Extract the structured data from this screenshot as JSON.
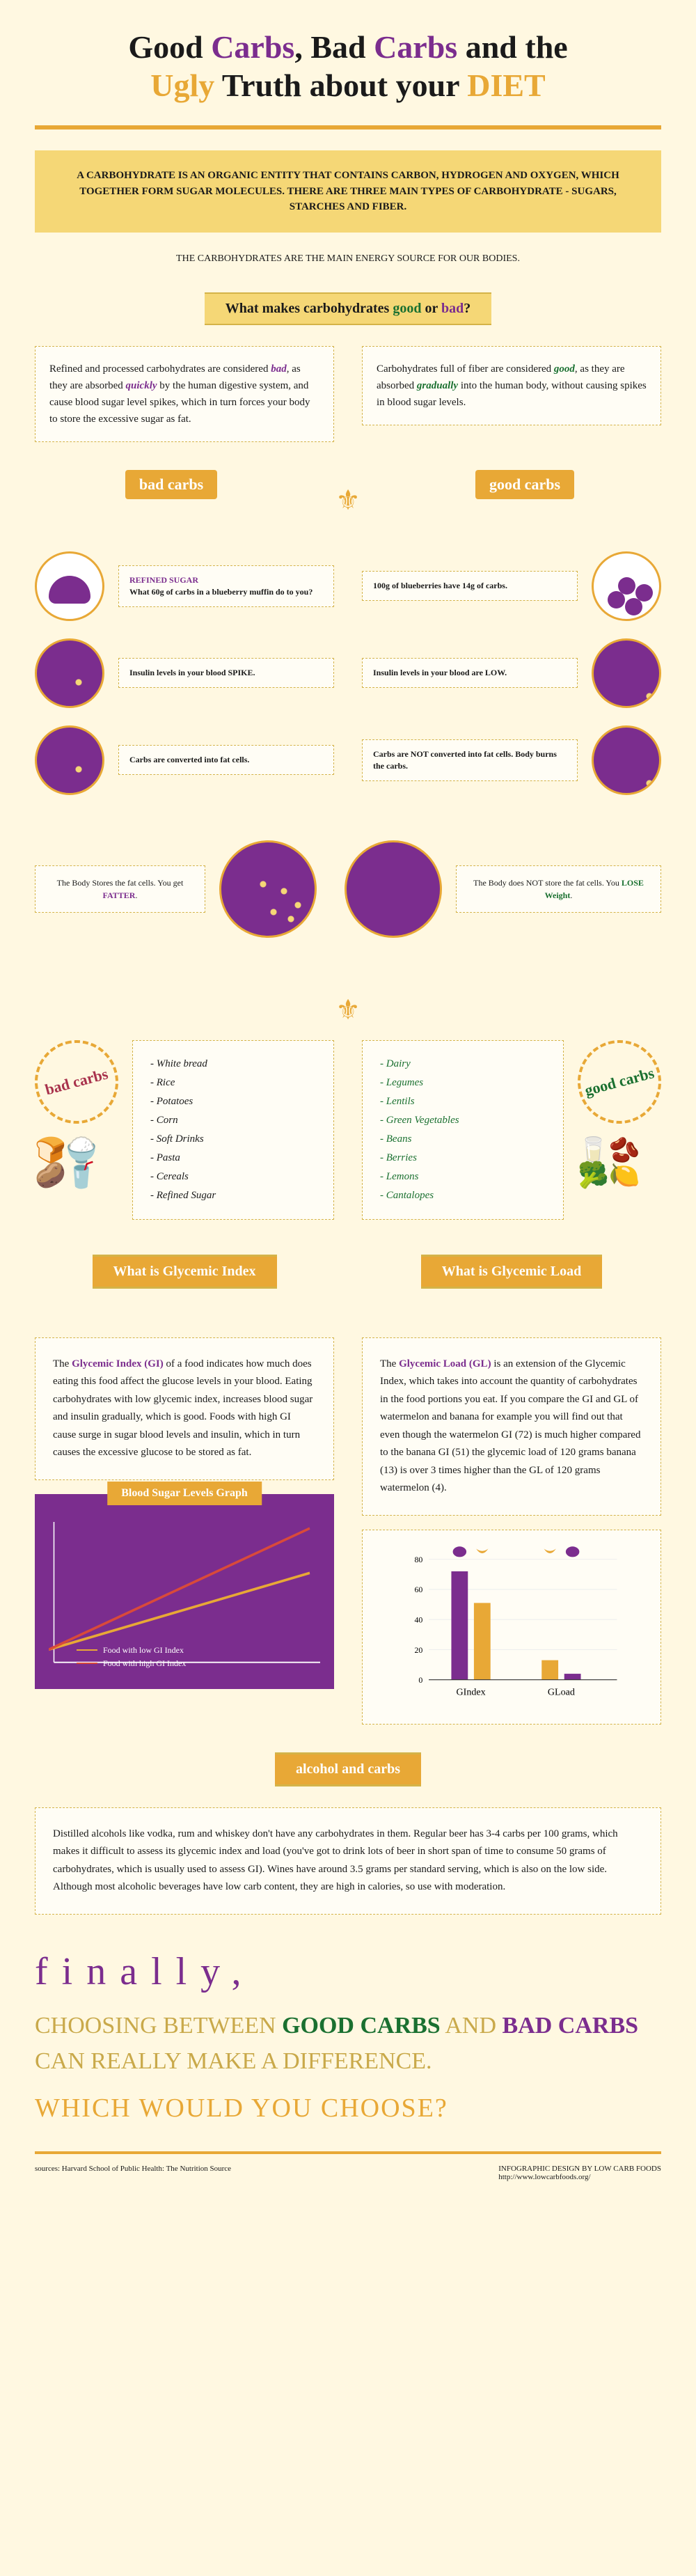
{
  "title": {
    "line": "Good Carbs, Bad Carbs and the Ugly Truth about your DIET"
  },
  "intro_banner": "A CARBOHYDRATE IS AN ORGANIC ENTITY THAT CONTAINS CARBON, HYDROGEN AND OXYGEN, WHICH TOGETHER FORM SUGAR MOLECULES. THERE ARE THREE MAIN TYPES OF CARBOHYDRATE - SUGARS, STARCHES AND FIBER.",
  "intro_sub": "THE CARBOHYDRATES ARE THE MAIN ENERGY SOURCE FOR OUR BODIES.",
  "heading1": {
    "pre": "What makes carbohydrates ",
    "good": "good",
    "or": " or ",
    "bad": "bad",
    "q": "?"
  },
  "bad_explain": {
    "t1": "Refined and processed carbohydrates are considered ",
    "bad": "bad",
    "t2": ", as they are absorbed ",
    "quickly": "quickly",
    "t3": " by the human digestive system, and cause blood sugar level spikes, which in turn forces your body to store the excessive sugar as fat."
  },
  "good_explain": {
    "t1": "Carbohydrates full of fiber are considered ",
    "good": "good",
    "t2": ", as they are absorbed ",
    "gradually": "gradually",
    "t3": " into the human body, without causing spikes in blood sugar levels."
  },
  "bad_label": "bad carbs",
  "good_label": "good carbs",
  "bad_steps": [
    {
      "title": "REFINED SUGAR",
      "sub": "What 60g of carbs in a blueberry muffin do to you?",
      "circle": "muffin"
    },
    {
      "title": "",
      "sub": "Insulin levels in your blood SPIKE.",
      "circle": "more-dots"
    },
    {
      "title": "",
      "sub": "Carbs are converted into fat cells.",
      "circle": "more-dots"
    }
  ],
  "bad_result": {
    "t1": "The Body Stores the fat cells. You get ",
    "em": "FATTER",
    "t2": "."
  },
  "good_steps": [
    {
      "title": "",
      "sub": "100g of blueberries have 14g of carbs.",
      "circle": "berries"
    },
    {
      "title": "",
      "sub": "Insulin levels in your blood are LOW.",
      "circle": "few-dots"
    },
    {
      "title": "",
      "sub": "Carbs are NOT converted into fat cells. Body burns the carbs.",
      "circle": "few-dots"
    }
  ],
  "good_result": {
    "t1": "The Body does NOT store the fat cells. You ",
    "em": "LOSE Weight",
    "t2": "."
  },
  "bad_foods": [
    "White bread",
    "Rice",
    "Potatoes",
    "Corn",
    "Soft Drinks",
    "Pasta",
    "Cereals",
    "Refined Sugar"
  ],
  "good_foods": [
    "Dairy",
    "Legumes",
    "Lentils",
    "Green Vegetables",
    "Beans",
    "Berries",
    "Lemons",
    "Cantalopes"
  ],
  "gi_heading": "What is Glycemic Index",
  "gl_heading": "What is Glycemic Load",
  "gi_text": {
    "t1": "The ",
    "kw": "Glycemic Index (GI)",
    "t2": " of a food indicates how much does eating this food affect the glucose levels in your blood. Eating carbohydrates with low glycemic index, increases blood sugar and insulin gradually, which is good. Foods with high GI cause surge in sugar blood levels and insulin, which in turn causes the excessive glucose to be stored as fat."
  },
  "gl_text": {
    "t1": "The ",
    "kw": "Glycemic Load (GL)",
    "t2": " is an extension of the Glycemic Index, which takes into account the quantity of carbohydrates in the food portions you eat. If you compare the GI and GL of watermelon and banana for example you will find out that even though the watermelon GI (72) is much higher compared to the banana GI (51) the glycemic load of 120 grams banana (13) is over 3 times higher than the GL of 120 grams watermelon (4)."
  },
  "graph": {
    "title": "Blood Sugar Levels Graph",
    "legend_low": "Food with low GI Index",
    "legend_high": "Food with high GI Index",
    "low_color": "#e8a836",
    "high_color": "#d94a3a",
    "low_line": [
      [
        0,
        100
      ],
      [
        250,
        40
      ]
    ],
    "high_line": [
      [
        0,
        100
      ],
      [
        250,
        5
      ]
    ]
  },
  "gl_chart": {
    "watermelon_gi": 72,
    "banana_gi": 51,
    "banana_gl": 13,
    "watermelon_gl": 4,
    "yticks": [
      0,
      20,
      40,
      60,
      80
    ],
    "label_gi": "GIndex",
    "label_gl": "GLoad",
    "watermelon_color": "#7b2d8e",
    "banana_color": "#e8a836"
  },
  "alcohol_heading": "alcohol and carbs",
  "alcohol_text": "Distilled alcohols like vodka, rum and whiskey don't have any carbohydrates in them. Regular beer has 3-4 carbs per 100 grams, which makes it difficult to assess its glycemic index and load (you've got to drink lots of beer in short span of time to consume 50 grams of carbohydrates, which is usually used to assess GI). Wines have around 3.5 grams per standard serving, which is also on the low side. Although most alcoholic beverages have low carb content, they are high in calories, so use with moderation.",
  "finally": "finally,",
  "closing": {
    "t1": "CHOOSING BETWEEN ",
    "good": "GOOD CARBS",
    "t2": " AND ",
    "bad": "BAD CARBS",
    "t3": " CAN REALLY MAKE A DIFFERENCE."
  },
  "which": "WHICH WOULD YOU CHOOSE?",
  "footer_left": "sources: Harvard School of Public Health: The Nutrition Source",
  "footer_right_1": "INFOGRAPHIC DESIGN BY LOW CARB FOODS",
  "footer_right_2": "http://www.lowcarbfoods.org/",
  "colors": {
    "bg": "#fff8e1",
    "orange": "#e8a836",
    "purple": "#7b2d8e",
    "green": "#1a7030",
    "yellow": "#f5d776"
  }
}
